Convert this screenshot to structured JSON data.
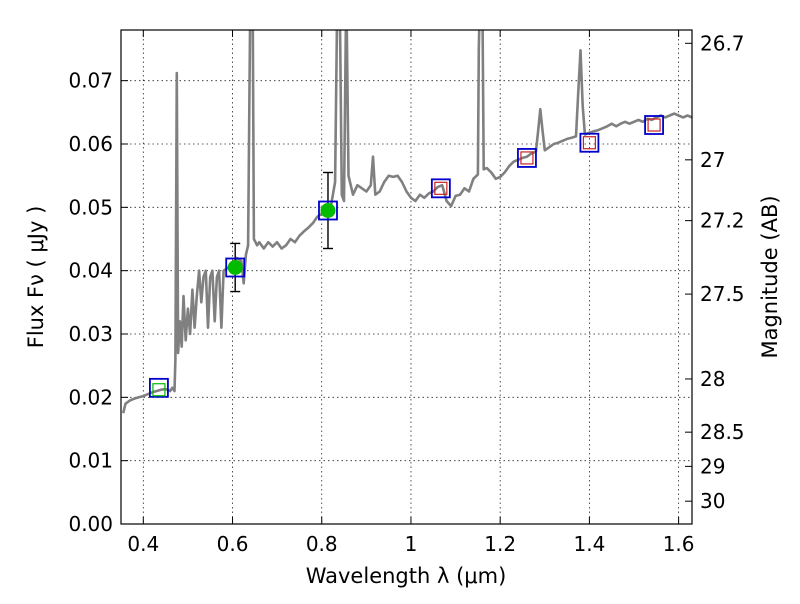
{
  "chart_data": {
    "type": "scatter",
    "title": "",
    "xlabel": "Wavelength  λ (μm)",
    "ylabel": "Flux  Fν  ( μJy )",
    "y2label": "Magnitude (AB)",
    "xlim": [
      0.35,
      1.63
    ],
    "ylim": [
      0.0,
      0.078
    ],
    "grid": true,
    "x_ticks": [
      0.4,
      0.6,
      0.8,
      1.0,
      1.2,
      1.4,
      1.6
    ],
    "x_tick_labels": [
      "0.4",
      "0.6",
      "0.8",
      "1",
      "1.2",
      "1.4",
      "1.6"
    ],
    "y_ticks": [
      0.0,
      0.01,
      0.02,
      0.03,
      0.04,
      0.05,
      0.06,
      0.07
    ],
    "y_tick_labels": [
      "0.00",
      "0.01",
      "0.02",
      "0.03",
      "0.04",
      "0.05",
      "0.06",
      "0.07"
    ],
    "y2_ticks": [
      {
        "label": "26.7",
        "flux": 0.0759
      },
      {
        "label": "27",
        "flux": 0.0575
      },
      {
        "label": "27.2",
        "flux": 0.0479
      },
      {
        "label": "27.5",
        "flux": 0.0363
      },
      {
        "label": "28",
        "flux": 0.0229
      },
      {
        "label": "28.5",
        "flux": 0.0145
      },
      {
        "label": "29",
        "flux": 0.0091
      },
      {
        "label": "30",
        "flux": 0.0036
      }
    ],
    "colors": {
      "model": "#808080",
      "observed_marker": "#00bb00",
      "model_box": "#0000cc",
      "predicted_open": "#cc2222",
      "errorbar": "#000000"
    },
    "series": [
      {
        "type": "line",
        "points": [
          [
            0.355,
            0.0175
          ],
          [
            0.36,
            0.019
          ],
          [
            0.37,
            0.0195
          ],
          [
            0.38,
            0.0198
          ],
          [
            0.39,
            0.02
          ],
          [
            0.4,
            0.0202
          ],
          [
            0.41,
            0.0205
          ],
          [
            0.42,
            0.0208
          ],
          [
            0.43,
            0.021
          ],
          [
            0.44,
            0.0212
          ],
          [
            0.45,
            0.0213
          ],
          [
            0.46,
            0.021
          ],
          [
            0.465,
            0.0215
          ],
          [
            0.47,
            0.021
          ],
          [
            0.472,
            0.026
          ],
          [
            0.475,
            0.0712
          ],
          [
            0.478,
            0.027
          ],
          [
            0.482,
            0.032
          ],
          [
            0.486,
            0.028
          ],
          [
            0.49,
            0.036
          ],
          [
            0.495,
            0.029
          ],
          [
            0.5,
            0.034
          ],
          [
            0.505,
            0.03
          ],
          [
            0.51,
            0.037
          ],
          [
            0.515,
            0.031
          ],
          [
            0.52,
            0.036
          ],
          [
            0.525,
            0.04
          ],
          [
            0.53,
            0.035
          ],
          [
            0.535,
            0.039
          ],
          [
            0.54,
            0.04
          ],
          [
            0.545,
            0.031
          ],
          [
            0.55,
            0.039
          ],
          [
            0.555,
            0.04
          ],
          [
            0.56,
            0.032
          ],
          [
            0.565,
            0.039
          ],
          [
            0.57,
            0.04
          ],
          [
            0.575,
            0.031
          ],
          [
            0.58,
            0.04
          ],
          [
            0.59,
            0.0405
          ],
          [
            0.6,
            0.041
          ],
          [
            0.61,
            0.042
          ],
          [
            0.62,
            0.0415
          ],
          [
            0.625,
            0.038
          ],
          [
            0.63,
            0.0425
          ],
          [
            0.635,
            0.044
          ],
          [
            0.64,
            0.085
          ],
          [
            0.645,
            0.085
          ],
          [
            0.648,
            0.045
          ],
          [
            0.655,
            0.044
          ],
          [
            0.66,
            0.0445
          ],
          [
            0.67,
            0.0435
          ],
          [
            0.68,
            0.0445
          ],
          [
            0.69,
            0.0438
          ],
          [
            0.7,
            0.0445
          ],
          [
            0.71,
            0.0435
          ],
          [
            0.72,
            0.044
          ],
          [
            0.73,
            0.045
          ],
          [
            0.74,
            0.0445
          ],
          [
            0.75,
            0.0455
          ],
          [
            0.76,
            0.0462
          ],
          [
            0.77,
            0.0468
          ],
          [
            0.78,
            0.0475
          ],
          [
            0.79,
            0.0485
          ],
          [
            0.8,
            0.049
          ],
          [
            0.81,
            0.0495
          ],
          [
            0.82,
            0.05
          ],
          [
            0.825,
            0.052
          ],
          [
            0.83,
            0.054
          ],
          [
            0.835,
            0.085
          ],
          [
            0.84,
            0.085
          ],
          [
            0.845,
            0.052
          ],
          [
            0.85,
            0.051
          ],
          [
            0.855,
            0.085
          ],
          [
            0.86,
            0.055
          ],
          [
            0.87,
            0.052
          ],
          [
            0.88,
            0.0535
          ],
          [
            0.89,
            0.053
          ],
          [
            0.9,
            0.0525
          ],
          [
            0.91,
            0.0535
          ],
          [
            0.915,
            0.058
          ],
          [
            0.92,
            0.052
          ],
          [
            0.93,
            0.0525
          ],
          [
            0.94,
            0.054
          ],
          [
            0.95,
            0.055
          ],
          [
            0.96,
            0.0548
          ],
          [
            0.97,
            0.055
          ],
          [
            0.98,
            0.054
          ],
          [
            0.99,
            0.0525
          ],
          [
            1.0,
            0.0515
          ],
          [
            1.01,
            0.051
          ],
          [
            1.02,
            0.052
          ],
          [
            1.03,
            0.0515
          ],
          [
            1.04,
            0.0522
          ],
          [
            1.05,
            0.0525
          ],
          [
            1.06,
            0.0532
          ],
          [
            1.07,
            0.0535
          ],
          [
            1.08,
            0.051
          ],
          [
            1.09,
            0.0502
          ],
          [
            1.1,
            0.0518
          ],
          [
            1.11,
            0.052
          ],
          [
            1.12,
            0.053
          ],
          [
            1.13,
            0.0525
          ],
          [
            1.14,
            0.0545
          ],
          [
            1.15,
            0.0552
          ],
          [
            1.152,
            0.075
          ],
          [
            1.155,
            0.085
          ],
          [
            1.16,
            0.085
          ],
          [
            1.163,
            0.056
          ],
          [
            1.17,
            0.0562
          ],
          [
            1.18,
            0.0555
          ],
          [
            1.19,
            0.0545
          ],
          [
            1.2,
            0.0548
          ],
          [
            1.21,
            0.0555
          ],
          [
            1.22,
            0.0565
          ],
          [
            1.23,
            0.0572
          ],
          [
            1.24,
            0.0575
          ],
          [
            1.25,
            0.0578
          ],
          [
            1.26,
            0.058
          ],
          [
            1.27,
            0.0585
          ],
          [
            1.28,
            0.0588
          ],
          [
            1.285,
            0.062
          ],
          [
            1.29,
            0.0655
          ],
          [
            1.295,
            0.062
          ],
          [
            1.3,
            0.059
          ],
          [
            1.31,
            0.0595
          ],
          [
            1.32,
            0.06
          ],
          [
            1.33,
            0.0602
          ],
          [
            1.34,
            0.0605
          ],
          [
            1.35,
            0.0608
          ],
          [
            1.36,
            0.061
          ],
          [
            1.37,
            0.0612
          ],
          [
            1.375,
            0.068
          ],
          [
            1.38,
            0.0748
          ],
          [
            1.385,
            0.066
          ],
          [
            1.39,
            0.0615
          ],
          [
            1.4,
            0.0618
          ],
          [
            1.41,
            0.062
          ],
          [
            1.42,
            0.0622
          ],
          [
            1.43,
            0.0625
          ],
          [
            1.44,
            0.0628
          ],
          [
            1.45,
            0.0632
          ],
          [
            1.46,
            0.0628
          ],
          [
            1.47,
            0.0632
          ],
          [
            1.48,
            0.0635
          ],
          [
            1.49,
            0.0632
          ],
          [
            1.5,
            0.0635
          ],
          [
            1.51,
            0.0638
          ],
          [
            1.52,
            0.0635
          ],
          [
            1.53,
            0.064
          ],
          [
            1.54,
            0.0638
          ],
          [
            1.55,
            0.0642
          ],
          [
            1.56,
            0.0645
          ],
          [
            1.57,
            0.0642
          ],
          [
            1.58,
            0.0645
          ],
          [
            1.59,
            0.0648
          ],
          [
            1.6,
            0.0645
          ],
          [
            1.61,
            0.0642
          ],
          [
            1.62,
            0.0645
          ],
          [
            1.63,
            0.0642
          ]
        ]
      },
      {
        "type": "scatter",
        "marker": "open-square",
        "points": [
          {
            "x": 0.435,
            "y": 0.0215
          },
          {
            "x": 0.606,
            "y": 0.0405
          },
          {
            "x": 0.814,
            "y": 0.0495
          },
          {
            "x": 1.067,
            "y": 0.053
          },
          {
            "x": 1.26,
            "y": 0.0578
          },
          {
            "x": 1.4,
            "y": 0.0602
          },
          {
            "x": 1.545,
            "y": 0.063
          }
        ]
      },
      {
        "type": "scatter",
        "marker": "filled-circle",
        "points": [
          {
            "x": 0.606,
            "y": 0.0405,
            "yerr": 0.0038
          },
          {
            "x": 0.814,
            "y": 0.0495,
            "yerr": 0.006
          }
        ]
      },
      {
        "type": "scatter",
        "marker": "small-open-square",
        "points": [
          {
            "x": 0.435,
            "y": 0.0212,
            "color": "#00bb00"
          },
          {
            "x": 1.067,
            "y": 0.053,
            "color": "#cc2222"
          },
          {
            "x": 1.26,
            "y": 0.0578,
            "color": "#cc2222"
          },
          {
            "x": 1.4,
            "y": 0.0602,
            "color": "#cc2222"
          },
          {
            "x": 1.545,
            "y": 0.063,
            "color": "#cc2222"
          }
        ]
      }
    ]
  }
}
